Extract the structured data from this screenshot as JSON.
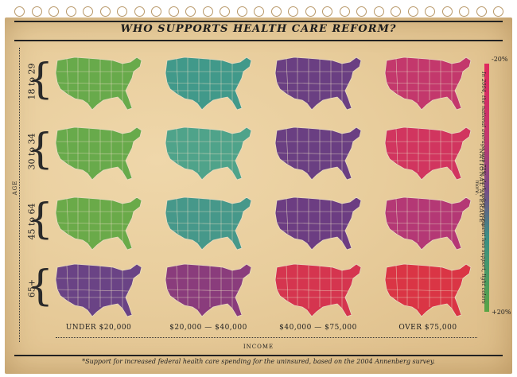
{
  "title": "WHO SUPPORTS HEALTH CARE REFORM?",
  "age_axis_title": "AGE",
  "income_axis_title": "INCOME",
  "age_groups": [
    "18 to 29",
    "30 to 34",
    "45 to 64",
    "65+"
  ],
  "income_groups": [
    "UNDER $20,000",
    "$20,000 — $40,000",
    "$40,000 — $75,000",
    "OVER $75,000"
  ],
  "scale": {
    "top_label": "-20%",
    "bottom_label": "+20%",
    "middle_label": "NATIONAL AVERAGE*",
    "note": "In 2004, the national average was 72%, dark colors represent less support, light colors more."
  },
  "footnote": "*Support for increased federal health care spending for the uninsured, based on the 2004 Annenberg survey.",
  "colors": {
    "light_green": "#63a84a",
    "teal": "#3e9a8a",
    "purple": "#6b3f82",
    "magenta": "#c1386e",
    "red": "#e1383e"
  },
  "map_palettes": [
    [
      "#68aa4b",
      "#41998a",
      "#6a3f82",
      "#c3386c"
    ],
    [
      "#68aa4b",
      "#4fa38a",
      "#6a3f82",
      "#d1355f"
    ],
    [
      "#6aaa49",
      "#46988a",
      "#6c3d82",
      "#b43875"
    ],
    [
      "#6a4385",
      "#8a3c7c",
      "#d5354f",
      "#da3545"
    ]
  ]
}
